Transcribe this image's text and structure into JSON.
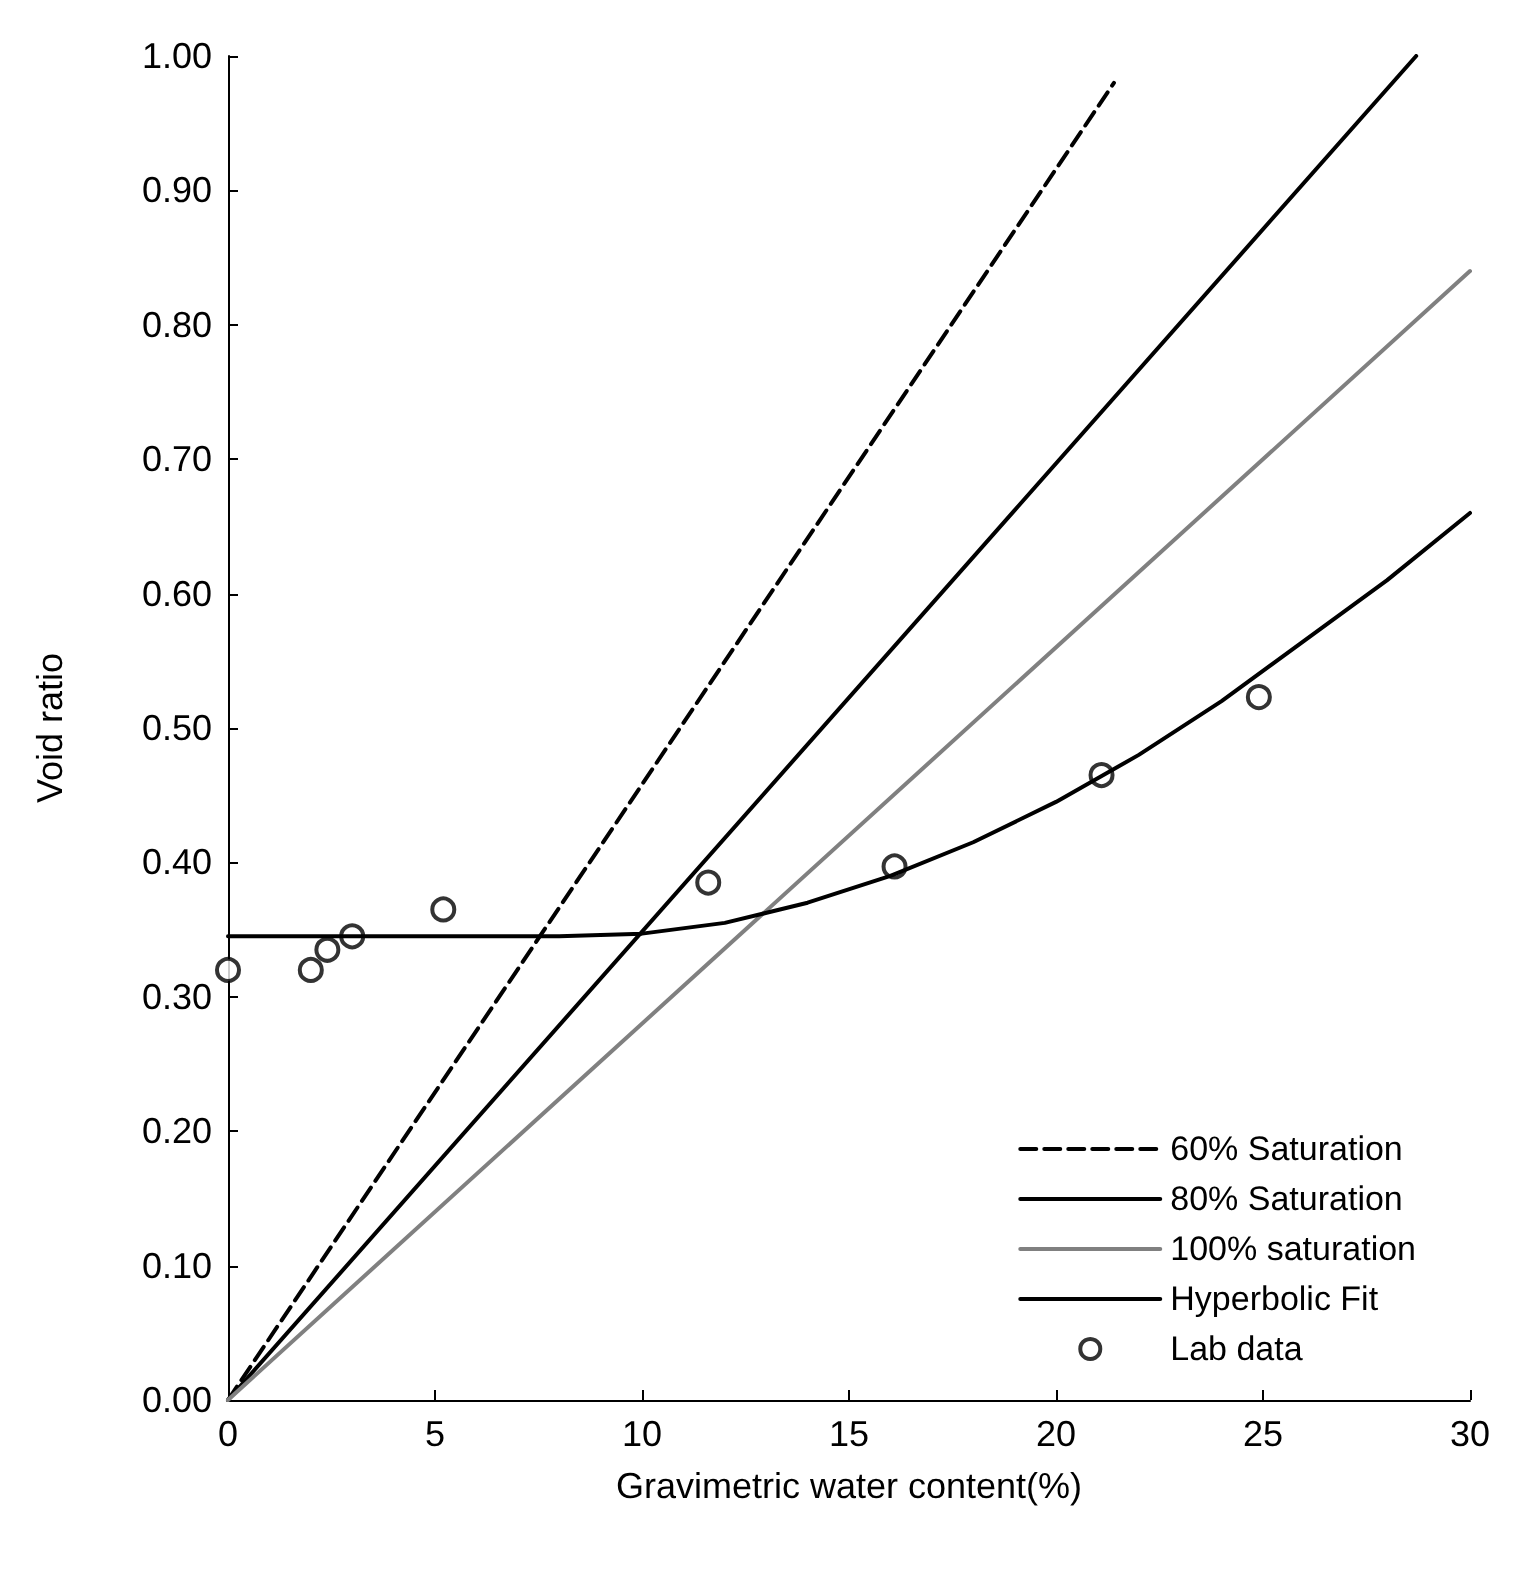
{
  "chart_data": {
    "type": "line",
    "xlabel": "Gravimetric water content(%)",
    "ylabel": "Void ratio",
    "xlim": [
      0,
      30
    ],
    "xticks": [
      0,
      5,
      10,
      15,
      20,
      25,
      30
    ],
    "ylim": [
      0,
      1
    ],
    "yticks": [
      {
        "value": 0,
        "label": "0.00"
      },
      {
        "value": 0.1,
        "label": "0.10"
      },
      {
        "value": 0.2,
        "label": "0.20"
      },
      {
        "value": 0.3,
        "label": "0.30"
      },
      {
        "value": 0.4,
        "label": "0.40"
      },
      {
        "value": 0.5,
        "label": "0.50"
      },
      {
        "value": 0.6,
        "label": "0.60"
      },
      {
        "value": 0.7,
        "label": "0.70"
      },
      {
        "value": 0.8,
        "label": "0.80"
      },
      {
        "value": 0.9,
        "label": "0.90"
      },
      {
        "value": 1,
        "label": "1.00"
      }
    ],
    "grid": false,
    "legend": "bottom right",
    "marker": "none",
    "series": [
      {
        "name": "60% Saturation",
        "color": "#000000",
        "line_style": "dashed",
        "x": [
          0,
          21.4
        ],
        "values": [
          0,
          0.98
        ]
      },
      {
        "name": "80% Saturation",
        "color": "#000000",
        "line_style": "solid",
        "x": [
          0,
          28.7
        ],
        "values": [
          0,
          1.0
        ]
      },
      {
        "name": "100% saturation",
        "color": "#808080",
        "line_style": "solid",
        "x": [
          0,
          30
        ],
        "values": [
          0,
          0.84
        ]
      },
      {
        "name": "Hyperbolic Fit",
        "color": "#000000",
        "line_style": "solid",
        "x": [
          0,
          4,
          8,
          10,
          12,
          14,
          16,
          18,
          20,
          22,
          24,
          26,
          28,
          30
        ],
        "values": [
          0.345,
          0.345,
          0.345,
          0.347,
          0.355,
          0.37,
          0.39,
          0.415,
          0.445,
          0.48,
          0.52,
          0.565,
          0.61,
          0.66
        ]
      },
      {
        "name": "Lab data",
        "type": "scatter",
        "color": "#000000",
        "marker": "circle",
        "x": [
          0,
          2,
          2.4,
          3,
          5.2,
          11.6,
          16.1,
          21.1,
          24.9
        ],
        "values": [
          0.32,
          0.32,
          0.335,
          0.345,
          0.365,
          0.385,
          0.397,
          0.465,
          0.523
        ]
      }
    ]
  }
}
